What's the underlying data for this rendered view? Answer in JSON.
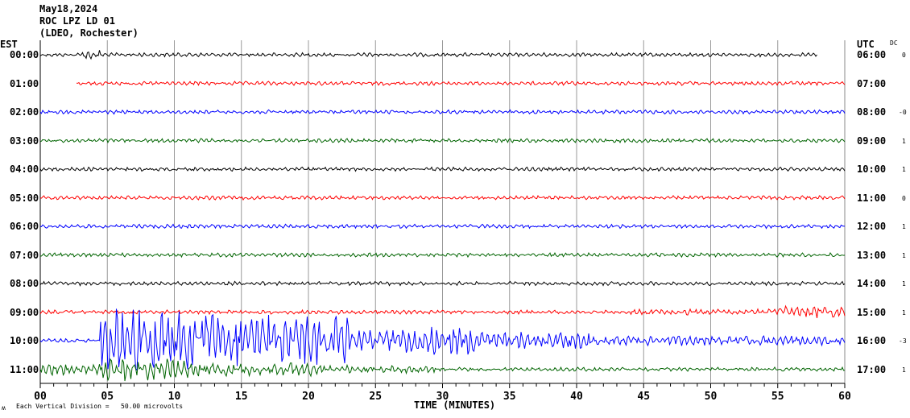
{
  "header": {
    "date": "May18,2024",
    "station": "ROC LPZ LD 01",
    "network": "(LDEO, Rochester)"
  },
  "left_axis_title": "EST",
  "right_axis_title": "UTC",
  "dc_title": "DC",
  "footer": {
    "scale_note": "Each Vertical Division =   50.00 microvolts",
    "corner_mark": "ʍ"
  },
  "chart_data": {
    "type": "line",
    "xlabel": "TIME (MINUTES)",
    "xlim": [
      0,
      60
    ],
    "x_ticks": [
      "00",
      "05",
      "10",
      "15",
      "20",
      "25",
      "30",
      "35",
      "40",
      "45",
      "50",
      "55",
      "60"
    ],
    "x_minor_tick_interval": 1,
    "grid": "vertical every 5 minutes",
    "rows": [
      {
        "est": "00:00",
        "utc": "06:00",
        "dc": "0",
        "color": "#000000",
        "start_min": 0,
        "end_min": 58,
        "event": false
      },
      {
        "est": "01:00",
        "utc": "07:00",
        "dc": "",
        "color": "#ff0000",
        "start_min": 2.7,
        "end_min": 60,
        "event": false
      },
      {
        "est": "02:00",
        "utc": "08:00",
        "dc": "-0",
        "color": "#0000ff",
        "start_min": 0,
        "end_min": 60,
        "event": false
      },
      {
        "est": "03:00",
        "utc": "09:00",
        "dc": "1",
        "color": "#006400",
        "start_min": 0,
        "end_min": 60,
        "event": false
      },
      {
        "est": "04:00",
        "utc": "10:00",
        "dc": "1",
        "color": "#000000",
        "start_min": 0,
        "end_min": 60,
        "event": false
      },
      {
        "est": "05:00",
        "utc": "11:00",
        "dc": "0",
        "color": "#ff0000",
        "start_min": 0,
        "end_min": 60,
        "event": false
      },
      {
        "est": "06:00",
        "utc": "12:00",
        "dc": "1",
        "color": "#0000ff",
        "start_min": 0,
        "end_min": 60,
        "event": false
      },
      {
        "est": "07:00",
        "utc": "13:00",
        "dc": "1",
        "color": "#006400",
        "start_min": 0,
        "end_min": 60,
        "event": false
      },
      {
        "est": "08:00",
        "utc": "14:00",
        "dc": "1",
        "color": "#000000",
        "start_min": 0,
        "end_min": 60,
        "event": false
      },
      {
        "est": "09:00",
        "utc": "15:00",
        "dc": "1",
        "color": "#ff0000",
        "start_min": 0,
        "end_min": 60,
        "event": false
      },
      {
        "est": "10:00",
        "utc": "16:00",
        "dc": "-3",
        "color": "#0000ff",
        "start_min": 0,
        "end_min": 60,
        "event": true
      },
      {
        "est": "11:00",
        "utc": "17:00",
        "dc": "1",
        "color": "#006400",
        "start_min": 0,
        "end_min": 60,
        "event": true
      }
    ]
  }
}
